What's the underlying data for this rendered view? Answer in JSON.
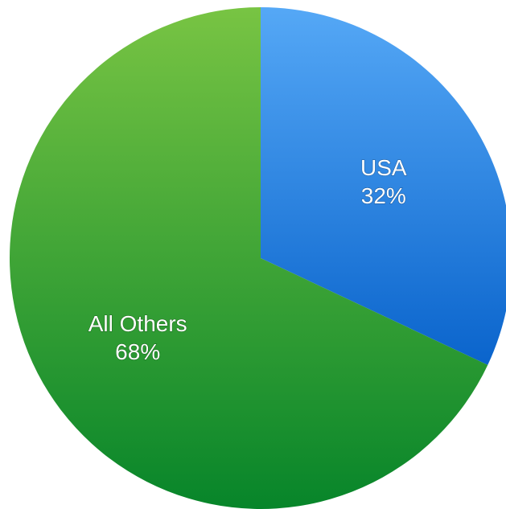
{
  "chart_data": {
    "type": "pie",
    "start_angle_deg": 0,
    "direction": "clockwise",
    "slices": [
      {
        "label": "USA",
        "value": 32,
        "value_label": "32%",
        "color_top": "#55A8F6",
        "color_bottom": "#0A64CC"
      },
      {
        "label": "All Others",
        "value": 68,
        "value_label": "68%",
        "color_top": "#78C443",
        "color_bottom": "#07852A"
      }
    ]
  }
}
